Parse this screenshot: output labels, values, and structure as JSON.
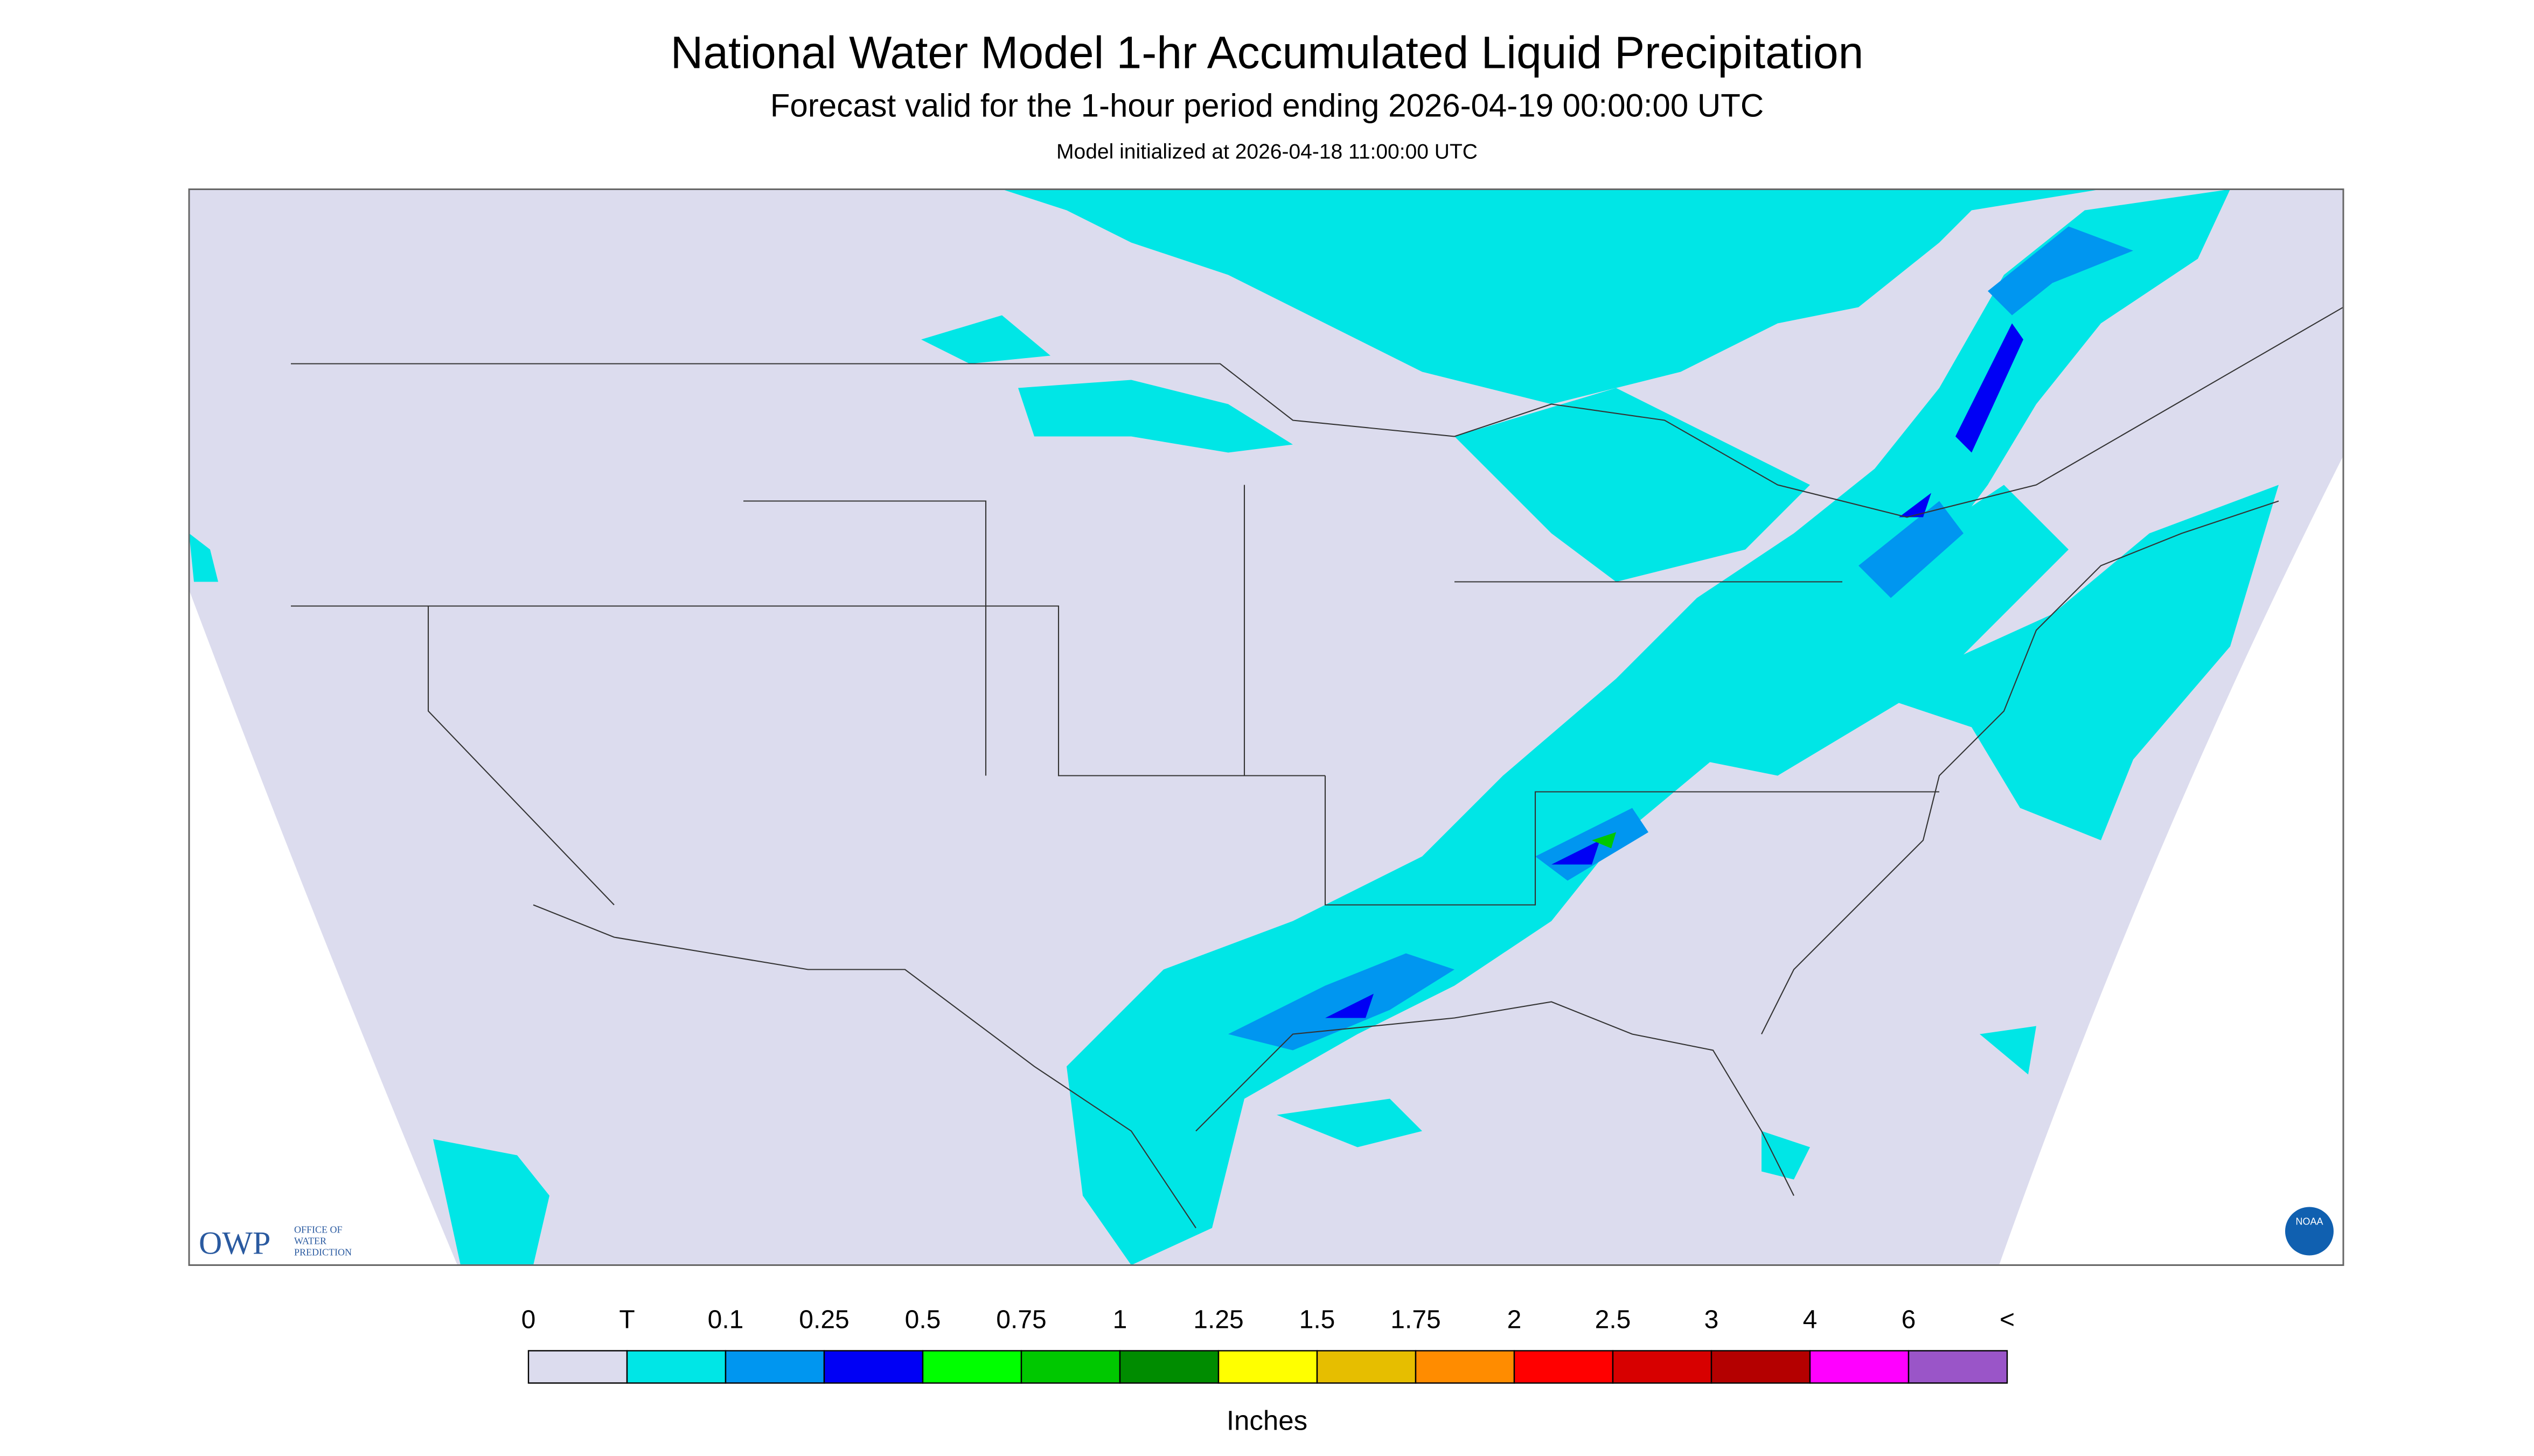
{
  "header": {
    "title": "National Water Model 1-hr Accumulated Liquid Precipitation",
    "subtitle": "Forecast valid for the 1-hour period ending 2026-04-19 00:00:00 UTC",
    "note": "Model initialized at 2026-04-18 11:00:00 UTC"
  },
  "logos": {
    "owp": "OWP",
    "owp_text": [
      "OFFICE OF",
      "WATER",
      "PREDICTION"
    ],
    "noaa": "NOAA"
  },
  "legend": {
    "labels": [
      "0",
      "T",
      "0.1",
      "0.25",
      "0.5",
      "0.75",
      "1",
      "1.25",
      "1.5",
      "1.75",
      "2",
      "2.5",
      "3",
      "4",
      "6",
      "<"
    ],
    "colors": [
      "#dcdcee",
      "#00e6e6",
      "#0096f0",
      "#0000f5",
      "#00ff00",
      "#00c800",
      "#008c00",
      "#ffff00",
      "#e6be00",
      "#ff8c00",
      "#ff0000",
      "#d70000",
      "#b40000",
      "#ff00ff",
      "#9a55c8"
    ],
    "unit": "Inches"
  }
}
